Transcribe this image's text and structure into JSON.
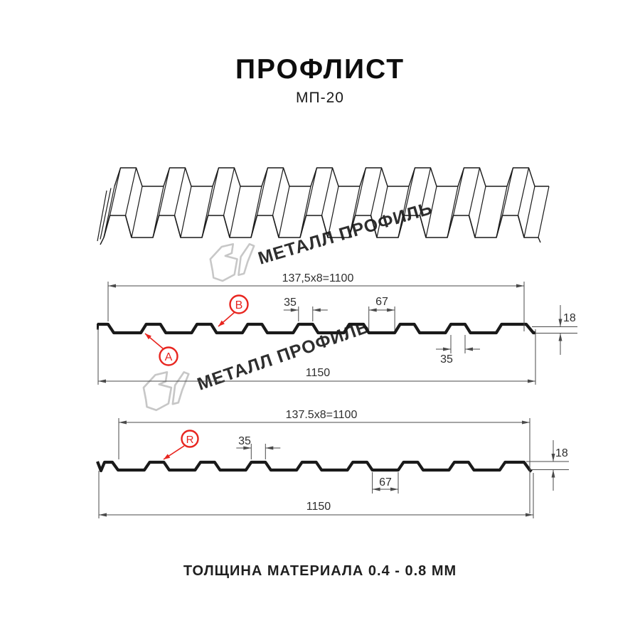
{
  "header": {
    "title": "ПРОФЛИСТ",
    "subtitle": "МП-20"
  },
  "watermark": {
    "text": "МЕТАЛЛ ПРОФИЛЬ",
    "color": "#c7c7c7"
  },
  "colors": {
    "line": "#1a1a1a",
    "dim": "#4a4a4a",
    "red": "#e8251f",
    "bg": "#ffffff"
  },
  "profile_top": {
    "working_width": "137,5x8=1100",
    "overall_width": "1150",
    "rib_top_width": "35",
    "groove_width": "67",
    "height": "18",
    "rib_bottom_width": "35",
    "marker_a": "A",
    "marker_b": "B"
  },
  "profile_bottom": {
    "working_width": "137.5x8=1100",
    "overall_width": "1150",
    "rib_top_width": "35",
    "groove_width": "67",
    "height": "18",
    "marker_r": "R"
  },
  "footer": {
    "note": "ТОЛЩИНА МАТЕРИАЛА 0.4 - 0.8 ММ"
  }
}
